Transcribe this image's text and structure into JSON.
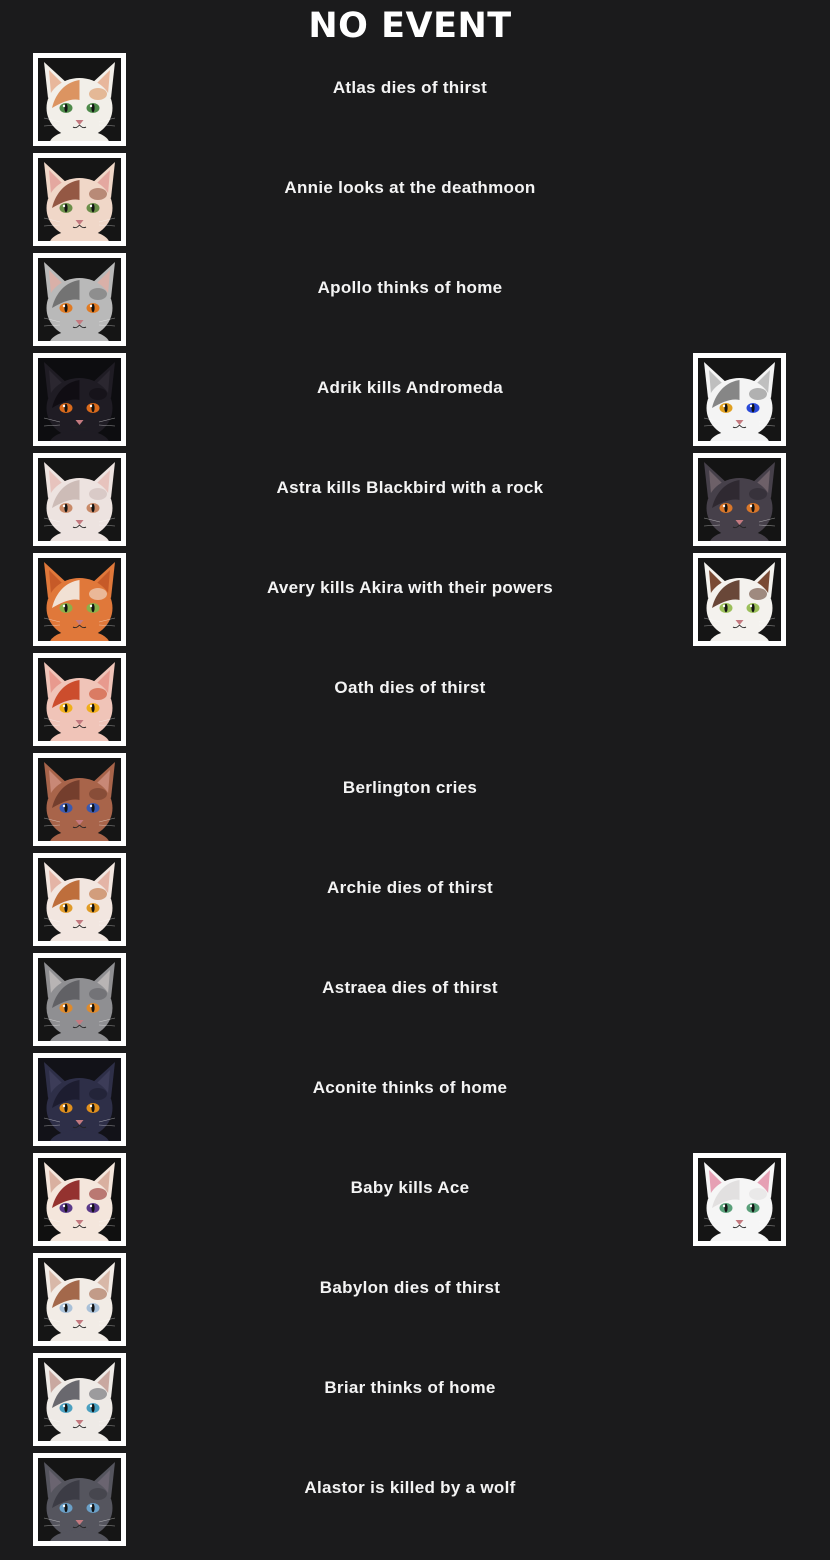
{
  "header": {
    "title": "NO EVENT"
  },
  "events": [
    {
      "text": "Atlas dies of thirst",
      "left": {
        "name": "Atlas",
        "fur": "#f2efe9",
        "patch": "#d98a52",
        "ear": "#e8b79c",
        "eye": "#4e8a4a",
        "bg": "#151515"
      }
    },
    {
      "text": "Annie looks at the deathmoon",
      "left": {
        "name": "Annie",
        "fur": "#f0d7c8",
        "patch": "#8a4a35",
        "ear": "#e4a8a0",
        "eye": "#6b8f4a",
        "bg": "#151515"
      }
    },
    {
      "text": "Apollo thinks of home",
      "left": {
        "name": "Apollo",
        "fur": "#b9b9b9",
        "patch": "#6c6c6c",
        "ear": "#d9b0a8",
        "eye": "#e07a22",
        "bg": "#151515"
      }
    },
    {
      "text": "Adrik kills Andromeda",
      "left": {
        "name": "Adrik",
        "fur": "#1f1c24",
        "patch": "#0e0c12",
        "ear": "#2b2730",
        "eye": "#d96a1c",
        "bg": "#0d0d10"
      },
      "right": {
        "name": "Andromeda",
        "fur": "#f4f4f4",
        "patch": "#7a7a7a",
        "ear": "#bfbfbf",
        "eye": "#e0a020",
        "eye2": "#2a4ad8",
        "bg": "#151515"
      }
    },
    {
      "text": "Astra kills Blackbird with a rock",
      "left": {
        "name": "Astra",
        "fur": "#ede3e0",
        "patch": "#c9b7b2",
        "ear": "#e7c3bd",
        "eye": "#c98a68",
        "bg": "#151515"
      },
      "right": {
        "name": "Blackbird",
        "fur": "#46404a",
        "patch": "#2c272f",
        "ear": "#6d6068",
        "eye": "#d9772a",
        "bg": "#141414"
      }
    },
    {
      "text": "Avery kills Akira with their powers",
      "left": {
        "name": "Avery",
        "fur": "#e0783a",
        "patch": "#f3ece6",
        "ear": "#c65a28",
        "eye": "#8bb04a",
        "bg": "#151515"
      },
      "right": {
        "name": "Akira",
        "fur": "#f4f2ee",
        "patch": "#5a3424",
        "ear": "#7a4a34",
        "eye": "#9bbf5a",
        "bg": "#151515"
      }
    },
    {
      "text": "Oath dies of thirst",
      "left": {
        "name": "Oath",
        "fur": "#f0c4b8",
        "patch": "#c8401e",
        "ear": "#e89a8e",
        "eye": "#f0b01a",
        "bg": "#151515"
      }
    },
    {
      "text": "Berlington cries",
      "left": {
        "name": "Berlington",
        "fur": "#a8644a",
        "patch": "#6e3a2a",
        "ear": "#c88876",
        "eye": "#3a5ab0",
        "bg": "#151515"
      }
    },
    {
      "text": "Archie dies of thirst",
      "left": {
        "name": "Archie",
        "fur": "#f2e6e0",
        "patch": "#b8602a",
        "ear": "#e4b4a6",
        "eye": "#e09a28",
        "bg": "#151515"
      }
    },
    {
      "text": "Astraea dies of thirst",
      "left": {
        "name": "Astraea",
        "fur": "#8f8f92",
        "patch": "#5c5c60",
        "ear": "#b8b4b4",
        "eye": "#e08a2a",
        "bg": "#151515"
      }
    },
    {
      "text": "Aconite thinks of home",
      "left": {
        "name": "Aconite",
        "fur": "#2e2f48",
        "patch": "#1c1c2e",
        "ear": "#3c3c58",
        "eye": "#e0901e",
        "bg": "#121218"
      }
    },
    {
      "text": "Baby kills Ace",
      "left": {
        "name": "Baby",
        "fur": "#f4e6dc",
        "patch": "#8a1e1c",
        "ear": "#d9b0a0",
        "eye": "#5a3a8a",
        "bg": "#101010"
      },
      "right": {
        "name": "Ace",
        "fur": "#f6f6f6",
        "patch": "#e0dede",
        "ear": "#e6a0b4",
        "eye": "#5aa07a",
        "bg": "#151515"
      }
    },
    {
      "text": "Babylon dies of thirst",
      "left": {
        "name": "Babylon",
        "fur": "#f2ece6",
        "patch": "#9a5a3a",
        "ear": "#d8b8a8",
        "eye": "#a8c0d8",
        "bg": "#151515"
      }
    },
    {
      "text": "Briar thinks of home",
      "left": {
        "name": "Briar",
        "fur": "#eeeae6",
        "patch": "#5a5a60",
        "ear": "#c9a8a0",
        "eye": "#4aa0c0",
        "bg": "#151515"
      }
    },
    {
      "text": "Alastor is killed by a wolf",
      "left": {
        "name": "Alastor",
        "fur": "#55555e",
        "patch": "#3a3a42",
        "ear": "#6a6470",
        "eye": "#6aa0c8",
        "bg": "#151515"
      }
    }
  ]
}
